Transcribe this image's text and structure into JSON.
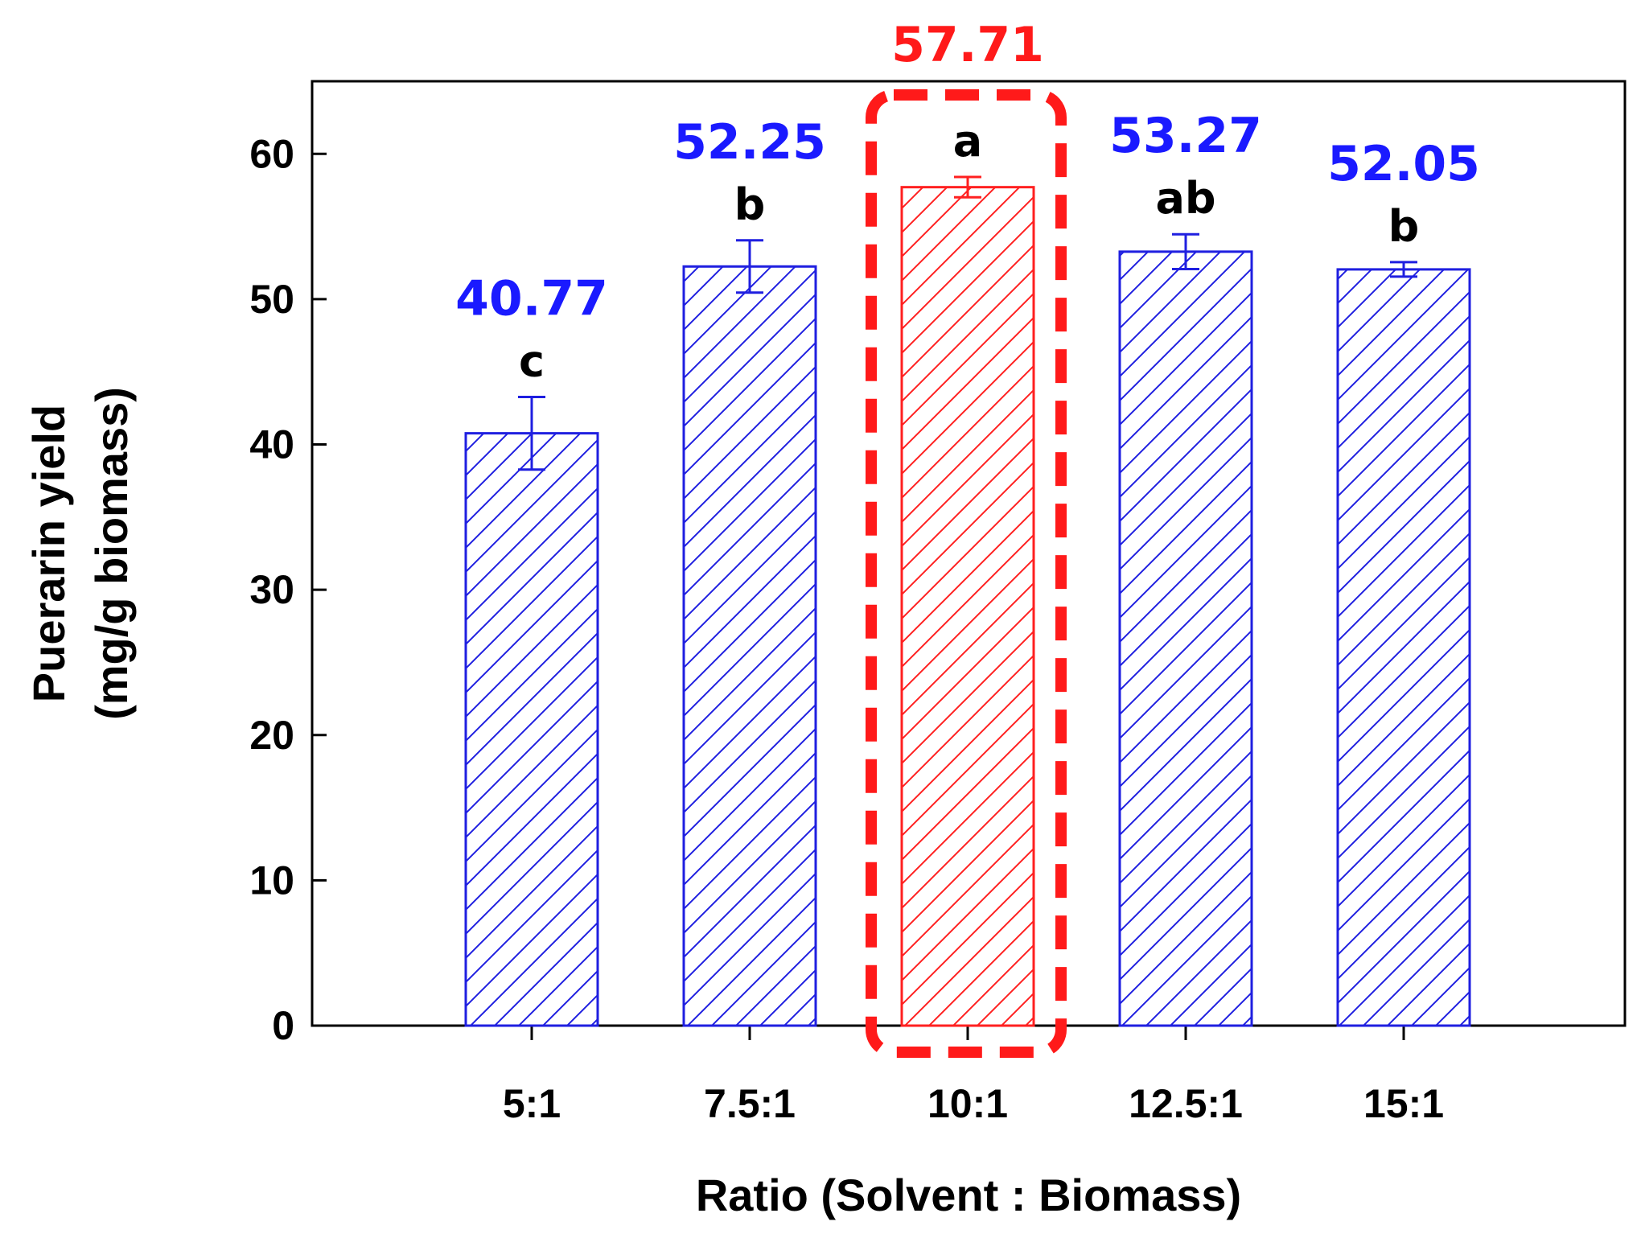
{
  "chart_data": {
    "type": "bar",
    "xlabel": "Ratio (Solvent : Biomass)",
    "ylabel": "Puerarin yield",
    "ylabel_line2": "(mg/g biomass)",
    "ylim": [
      0,
      65
    ],
    "yticks": [
      0,
      10,
      20,
      30,
      40,
      50,
      60
    ],
    "yticks_text": [
      "0",
      "10",
      "20",
      "30",
      "40",
      "50",
      "60"
    ],
    "grid": false,
    "categories": [
      "5:1",
      "7.5:1",
      "10:1",
      "12.5:1",
      "15:1"
    ],
    "values": [
      40.77,
      52.25,
      57.71,
      53.27,
      52.05
    ],
    "value_labels": [
      "40.77",
      "52.25",
      "57.71",
      "53.27",
      "52.05"
    ],
    "errors": [
      2.5,
      1.8,
      0.7,
      1.2,
      0.5
    ],
    "group_letters": [
      "c",
      "b",
      "a",
      "ab",
      "b"
    ],
    "highlighted_category": "10:1",
    "bar_fill": "hatched",
    "colors": {
      "bar_normal": "#1f1fe0",
      "bar_highlight": "#ff2020",
      "value_label_normal": "#1a1aff",
      "value_label_highlight": "#ff1a1a",
      "highlight_box": "#ff1a1a",
      "axis": "#000000"
    }
  }
}
